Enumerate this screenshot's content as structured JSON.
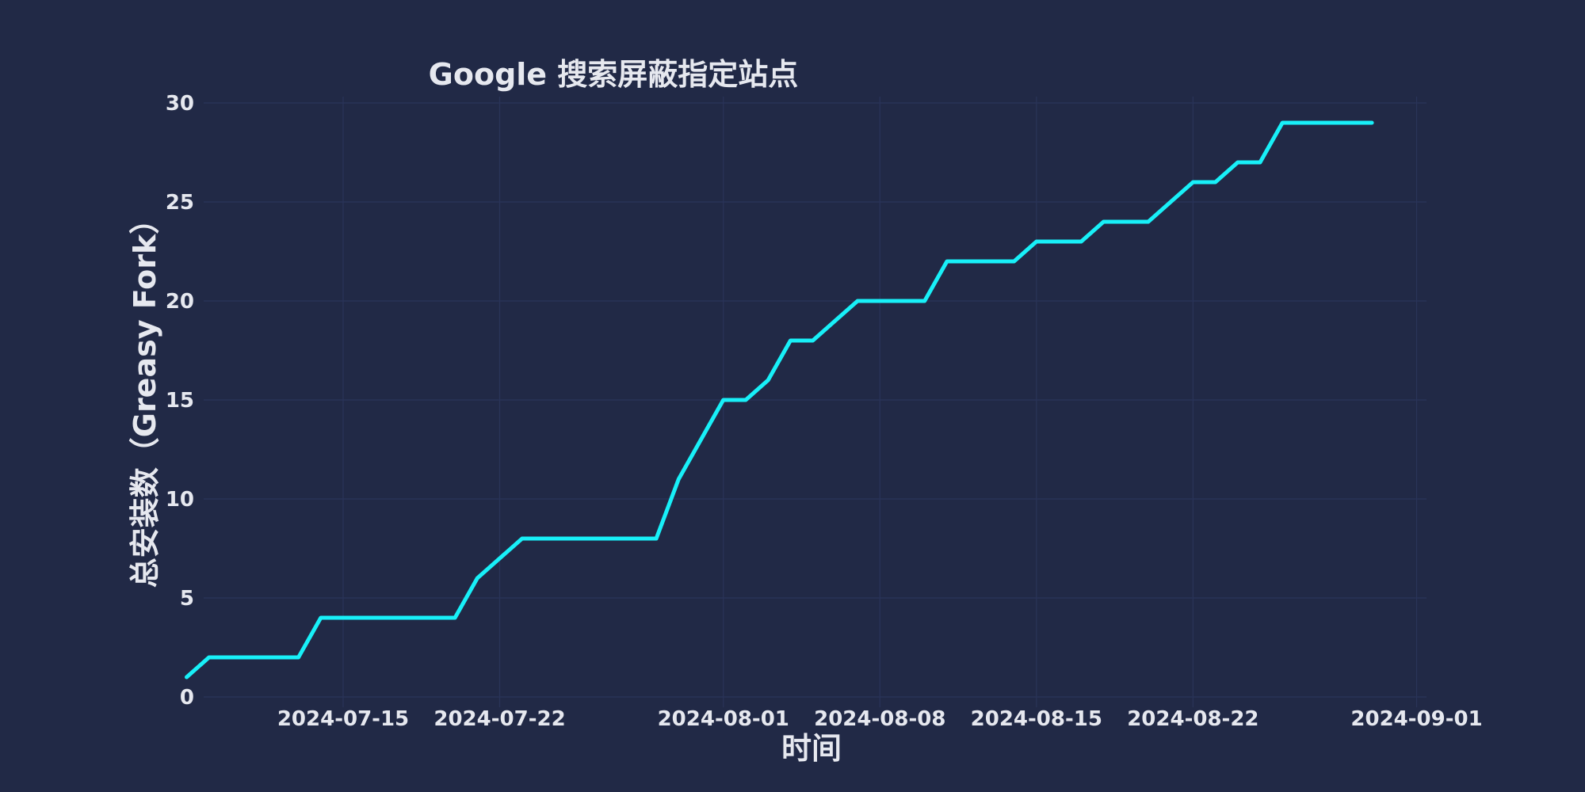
{
  "chart_data": {
    "type": "line",
    "title": "Google 搜索屏蔽指定站点",
    "xlabel": "时间",
    "ylabel": "总安装数（Greasy Fork）",
    "x_axis_type": "date",
    "xlim": [
      "2024-07-06",
      "2024-09-02"
    ],
    "ylim": [
      0,
      30
    ],
    "x_ticks": [
      "2024-07-15",
      "2024-07-22",
      "2024-08-01",
      "2024-08-08",
      "2024-08-15",
      "2024-08-22",
      "2024-09-01"
    ],
    "y_ticks": [
      0,
      5,
      10,
      15,
      20,
      25,
      30
    ],
    "grid": true,
    "legend": false,
    "colors": {
      "background": "#212946",
      "line": "#18F0F8",
      "grid": "#2A3459",
      "text": "#E6E8EF"
    },
    "series": [
      {
        "x": [
          "2024-07-08",
          "2024-07-09",
          "2024-07-10",
          "2024-07-11",
          "2024-07-12",
          "2024-07-13",
          "2024-07-14",
          "2024-07-15",
          "2024-07-16",
          "2024-07-17",
          "2024-07-18",
          "2024-07-19",
          "2024-07-20",
          "2024-07-21",
          "2024-07-22",
          "2024-07-23",
          "2024-07-24",
          "2024-07-25",
          "2024-07-26",
          "2024-07-27",
          "2024-07-28",
          "2024-07-29",
          "2024-07-30",
          "2024-07-31",
          "2024-08-01",
          "2024-08-02",
          "2024-08-03",
          "2024-08-04",
          "2024-08-05",
          "2024-08-06",
          "2024-08-07",
          "2024-08-08",
          "2024-08-09",
          "2024-08-10",
          "2024-08-11",
          "2024-08-12",
          "2024-08-13",
          "2024-08-14",
          "2024-08-15",
          "2024-08-16",
          "2024-08-17",
          "2024-08-18",
          "2024-08-19",
          "2024-08-20",
          "2024-08-21",
          "2024-08-22",
          "2024-08-23",
          "2024-08-24",
          "2024-08-25",
          "2024-08-26",
          "2024-08-27",
          "2024-08-28",
          "2024-08-29",
          "2024-08-30"
        ],
        "values": [
          1,
          2,
          2,
          2,
          2,
          2,
          4,
          4,
          4,
          4,
          4,
          4,
          4,
          6,
          7,
          8,
          8,
          8,
          8,
          8,
          8,
          8,
          11,
          13,
          15,
          15,
          16,
          18,
          18,
          19,
          20,
          20,
          20,
          20,
          22,
          22,
          22,
          22,
          23,
          23,
          23,
          24,
          24,
          24,
          25,
          26,
          26,
          27,
          27,
          29,
          29,
          29,
          29,
          29
        ]
      }
    ]
  }
}
